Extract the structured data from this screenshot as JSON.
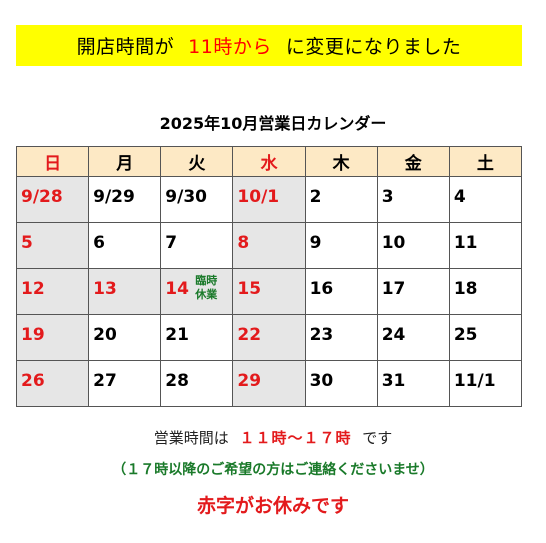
{
  "banner": {
    "text_1": "開店時間が",
    "text_2": "11時から",
    "text_3": "に変更になりました"
  },
  "calendar": {
    "title": "2025年10月営業日カレンダー",
    "weekdays": [
      "日",
      "月",
      "火",
      "水",
      "木",
      "金",
      "土"
    ],
    "weeks": [
      [
        {
          "day": "9/28",
          "red": true,
          "closed": true
        },
        {
          "day": "9/29",
          "red": false,
          "closed": false
        },
        {
          "day": "9/30",
          "red": false,
          "closed": false
        },
        {
          "day": "10/1",
          "red": true,
          "closed": true
        },
        {
          "day": "2",
          "red": false,
          "closed": false
        },
        {
          "day": "3",
          "red": false,
          "closed": false
        },
        {
          "day": "4",
          "red": false,
          "closed": false
        }
      ],
      [
        {
          "day": "5",
          "red": true,
          "closed": true
        },
        {
          "day": "6",
          "red": false,
          "closed": false
        },
        {
          "day": "7",
          "red": false,
          "closed": false
        },
        {
          "day": "8",
          "red": true,
          "closed": true
        },
        {
          "day": "9",
          "red": false,
          "closed": false
        },
        {
          "day": "10",
          "red": false,
          "closed": false
        },
        {
          "day": "11",
          "red": false,
          "closed": false
        }
      ],
      [
        {
          "day": "12",
          "red": true,
          "closed": true
        },
        {
          "day": "13",
          "red": true,
          "closed": true
        },
        {
          "day": "14",
          "red": true,
          "closed": true,
          "note": "臨時休業"
        },
        {
          "day": "15",
          "red": true,
          "closed": true
        },
        {
          "day": "16",
          "red": false,
          "closed": false
        },
        {
          "day": "17",
          "red": false,
          "closed": false
        },
        {
          "day": "18",
          "red": false,
          "closed": false
        }
      ],
      [
        {
          "day": "19",
          "red": true,
          "closed": true
        },
        {
          "day": "20",
          "red": false,
          "closed": false
        },
        {
          "day": "21",
          "red": false,
          "closed": false
        },
        {
          "day": "22",
          "red": true,
          "closed": true
        },
        {
          "day": "23",
          "red": false,
          "closed": false
        },
        {
          "day": "24",
          "red": false,
          "closed": false
        },
        {
          "day": "25",
          "red": false,
          "closed": false
        }
      ],
      [
        {
          "day": "26",
          "red": true,
          "closed": true
        },
        {
          "day": "27",
          "red": false,
          "closed": false
        },
        {
          "day": "28",
          "red": false,
          "closed": false
        },
        {
          "day": "29",
          "red": true,
          "closed": true
        },
        {
          "day": "30",
          "red": false,
          "closed": false
        },
        {
          "day": "31",
          "red": false,
          "closed": false
        },
        {
          "day": "11/1",
          "red": false,
          "closed": false
        }
      ]
    ]
  },
  "hours": {
    "prefix": "営業時間は",
    "time": "１１時～１７時",
    "suffix": "です"
  },
  "contact_note": "（１７時以降のご希望の方はご連絡くださいませ）",
  "closed_note": "赤字がお休みです",
  "colors": {
    "banner_bg": "#ffff00",
    "red": "#e31a1c",
    "green": "#1a7a2a",
    "header_bg": "#fde9c5",
    "closed_bg": "#e6e6e6"
  }
}
